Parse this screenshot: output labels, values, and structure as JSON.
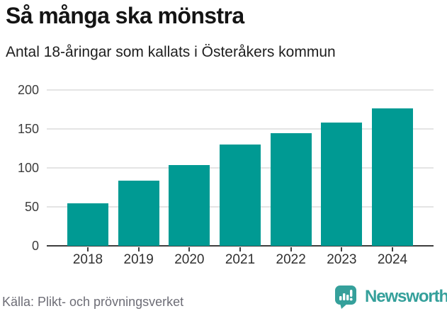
{
  "header": {
    "title": "Så många ska mönstra",
    "subtitle": "Antal 18-åringar som kallats i Österåkers kommun"
  },
  "chart_data": {
    "type": "bar",
    "categories": [
      "2018",
      "2019",
      "2020",
      "2021",
      "2022",
      "2023",
      "2024"
    ],
    "values": [
      55,
      84,
      104,
      130,
      145,
      158,
      176
    ],
    "title": "Så många ska mönstra",
    "subtitle": "Antal 18-åringar som kallats i Österåkers kommun",
    "xlabel": "",
    "ylabel": "",
    "ylim": [
      0,
      200
    ],
    "yticks": [
      0,
      50,
      100,
      150,
      200
    ],
    "grid": true,
    "legend": false
  },
  "footer": {
    "source": "Källa: Plikt- och prövningsverket",
    "brand": "Newsworthy",
    "logo_icon": "newsworthy-speech-bubble-barchart-icon"
  },
  "colors": {
    "bar": "#009a93",
    "brand_teal": "#35a09b",
    "grid": "#e4e4e4",
    "axis": "#3d3d3d",
    "title_text": "#141414",
    "source_text": "#6d6d76"
  }
}
